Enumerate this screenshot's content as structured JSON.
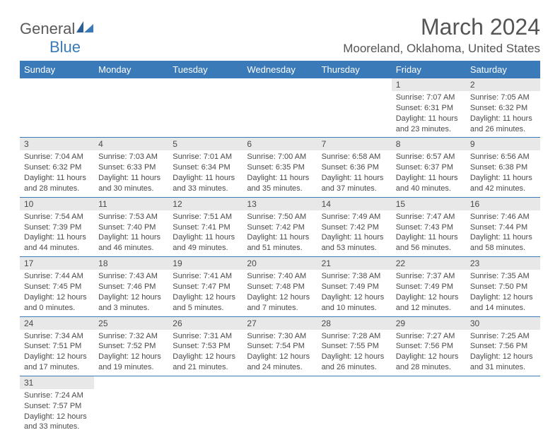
{
  "logo": {
    "main": "General",
    "sub": "Blue"
  },
  "title": "March 2024",
  "location": "Mooreland, Oklahoma, United States",
  "colors": {
    "header_bg": "#3a7ab8",
    "header_text": "#ffffff",
    "daynum_bg": "#e8e8e8",
    "text": "#4a4a4a",
    "rule": "#3a7ab8"
  },
  "weekdays": [
    "Sunday",
    "Monday",
    "Tuesday",
    "Wednesday",
    "Thursday",
    "Friday",
    "Saturday"
  ],
  "weeks": [
    [
      null,
      null,
      null,
      null,
      null,
      {
        "n": "1",
        "sr": "Sunrise: 7:07 AM",
        "ss": "Sunset: 6:31 PM",
        "dl": "Daylight: 11 hours and 23 minutes."
      },
      {
        "n": "2",
        "sr": "Sunrise: 7:05 AM",
        "ss": "Sunset: 6:32 PM",
        "dl": "Daylight: 11 hours and 26 minutes."
      }
    ],
    [
      {
        "n": "3",
        "sr": "Sunrise: 7:04 AM",
        "ss": "Sunset: 6:32 PM",
        "dl": "Daylight: 11 hours and 28 minutes."
      },
      {
        "n": "4",
        "sr": "Sunrise: 7:03 AM",
        "ss": "Sunset: 6:33 PM",
        "dl": "Daylight: 11 hours and 30 minutes."
      },
      {
        "n": "5",
        "sr": "Sunrise: 7:01 AM",
        "ss": "Sunset: 6:34 PM",
        "dl": "Daylight: 11 hours and 33 minutes."
      },
      {
        "n": "6",
        "sr": "Sunrise: 7:00 AM",
        "ss": "Sunset: 6:35 PM",
        "dl": "Daylight: 11 hours and 35 minutes."
      },
      {
        "n": "7",
        "sr": "Sunrise: 6:58 AM",
        "ss": "Sunset: 6:36 PM",
        "dl": "Daylight: 11 hours and 37 minutes."
      },
      {
        "n": "8",
        "sr": "Sunrise: 6:57 AM",
        "ss": "Sunset: 6:37 PM",
        "dl": "Daylight: 11 hours and 40 minutes."
      },
      {
        "n": "9",
        "sr": "Sunrise: 6:56 AM",
        "ss": "Sunset: 6:38 PM",
        "dl": "Daylight: 11 hours and 42 minutes."
      }
    ],
    [
      {
        "n": "10",
        "sr": "Sunrise: 7:54 AM",
        "ss": "Sunset: 7:39 PM",
        "dl": "Daylight: 11 hours and 44 minutes."
      },
      {
        "n": "11",
        "sr": "Sunrise: 7:53 AM",
        "ss": "Sunset: 7:40 PM",
        "dl": "Daylight: 11 hours and 46 minutes."
      },
      {
        "n": "12",
        "sr": "Sunrise: 7:51 AM",
        "ss": "Sunset: 7:41 PM",
        "dl": "Daylight: 11 hours and 49 minutes."
      },
      {
        "n": "13",
        "sr": "Sunrise: 7:50 AM",
        "ss": "Sunset: 7:42 PM",
        "dl": "Daylight: 11 hours and 51 minutes."
      },
      {
        "n": "14",
        "sr": "Sunrise: 7:49 AM",
        "ss": "Sunset: 7:42 PM",
        "dl": "Daylight: 11 hours and 53 minutes."
      },
      {
        "n": "15",
        "sr": "Sunrise: 7:47 AM",
        "ss": "Sunset: 7:43 PM",
        "dl": "Daylight: 11 hours and 56 minutes."
      },
      {
        "n": "16",
        "sr": "Sunrise: 7:46 AM",
        "ss": "Sunset: 7:44 PM",
        "dl": "Daylight: 11 hours and 58 minutes."
      }
    ],
    [
      {
        "n": "17",
        "sr": "Sunrise: 7:44 AM",
        "ss": "Sunset: 7:45 PM",
        "dl": "Daylight: 12 hours and 0 minutes."
      },
      {
        "n": "18",
        "sr": "Sunrise: 7:43 AM",
        "ss": "Sunset: 7:46 PM",
        "dl": "Daylight: 12 hours and 3 minutes."
      },
      {
        "n": "19",
        "sr": "Sunrise: 7:41 AM",
        "ss": "Sunset: 7:47 PM",
        "dl": "Daylight: 12 hours and 5 minutes."
      },
      {
        "n": "20",
        "sr": "Sunrise: 7:40 AM",
        "ss": "Sunset: 7:48 PM",
        "dl": "Daylight: 12 hours and 7 minutes."
      },
      {
        "n": "21",
        "sr": "Sunrise: 7:38 AM",
        "ss": "Sunset: 7:49 PM",
        "dl": "Daylight: 12 hours and 10 minutes."
      },
      {
        "n": "22",
        "sr": "Sunrise: 7:37 AM",
        "ss": "Sunset: 7:49 PM",
        "dl": "Daylight: 12 hours and 12 minutes."
      },
      {
        "n": "23",
        "sr": "Sunrise: 7:35 AM",
        "ss": "Sunset: 7:50 PM",
        "dl": "Daylight: 12 hours and 14 minutes."
      }
    ],
    [
      {
        "n": "24",
        "sr": "Sunrise: 7:34 AM",
        "ss": "Sunset: 7:51 PM",
        "dl": "Daylight: 12 hours and 17 minutes."
      },
      {
        "n": "25",
        "sr": "Sunrise: 7:32 AM",
        "ss": "Sunset: 7:52 PM",
        "dl": "Daylight: 12 hours and 19 minutes."
      },
      {
        "n": "26",
        "sr": "Sunrise: 7:31 AM",
        "ss": "Sunset: 7:53 PM",
        "dl": "Daylight: 12 hours and 21 minutes."
      },
      {
        "n": "27",
        "sr": "Sunrise: 7:30 AM",
        "ss": "Sunset: 7:54 PM",
        "dl": "Daylight: 12 hours and 24 minutes."
      },
      {
        "n": "28",
        "sr": "Sunrise: 7:28 AM",
        "ss": "Sunset: 7:55 PM",
        "dl": "Daylight: 12 hours and 26 minutes."
      },
      {
        "n": "29",
        "sr": "Sunrise: 7:27 AM",
        "ss": "Sunset: 7:56 PM",
        "dl": "Daylight: 12 hours and 28 minutes."
      },
      {
        "n": "30",
        "sr": "Sunrise: 7:25 AM",
        "ss": "Sunset: 7:56 PM",
        "dl": "Daylight: 12 hours and 31 minutes."
      }
    ],
    [
      {
        "n": "31",
        "sr": "Sunrise: 7:24 AM",
        "ss": "Sunset: 7:57 PM",
        "dl": "Daylight: 12 hours and 33 minutes."
      },
      null,
      null,
      null,
      null,
      null,
      null
    ]
  ]
}
